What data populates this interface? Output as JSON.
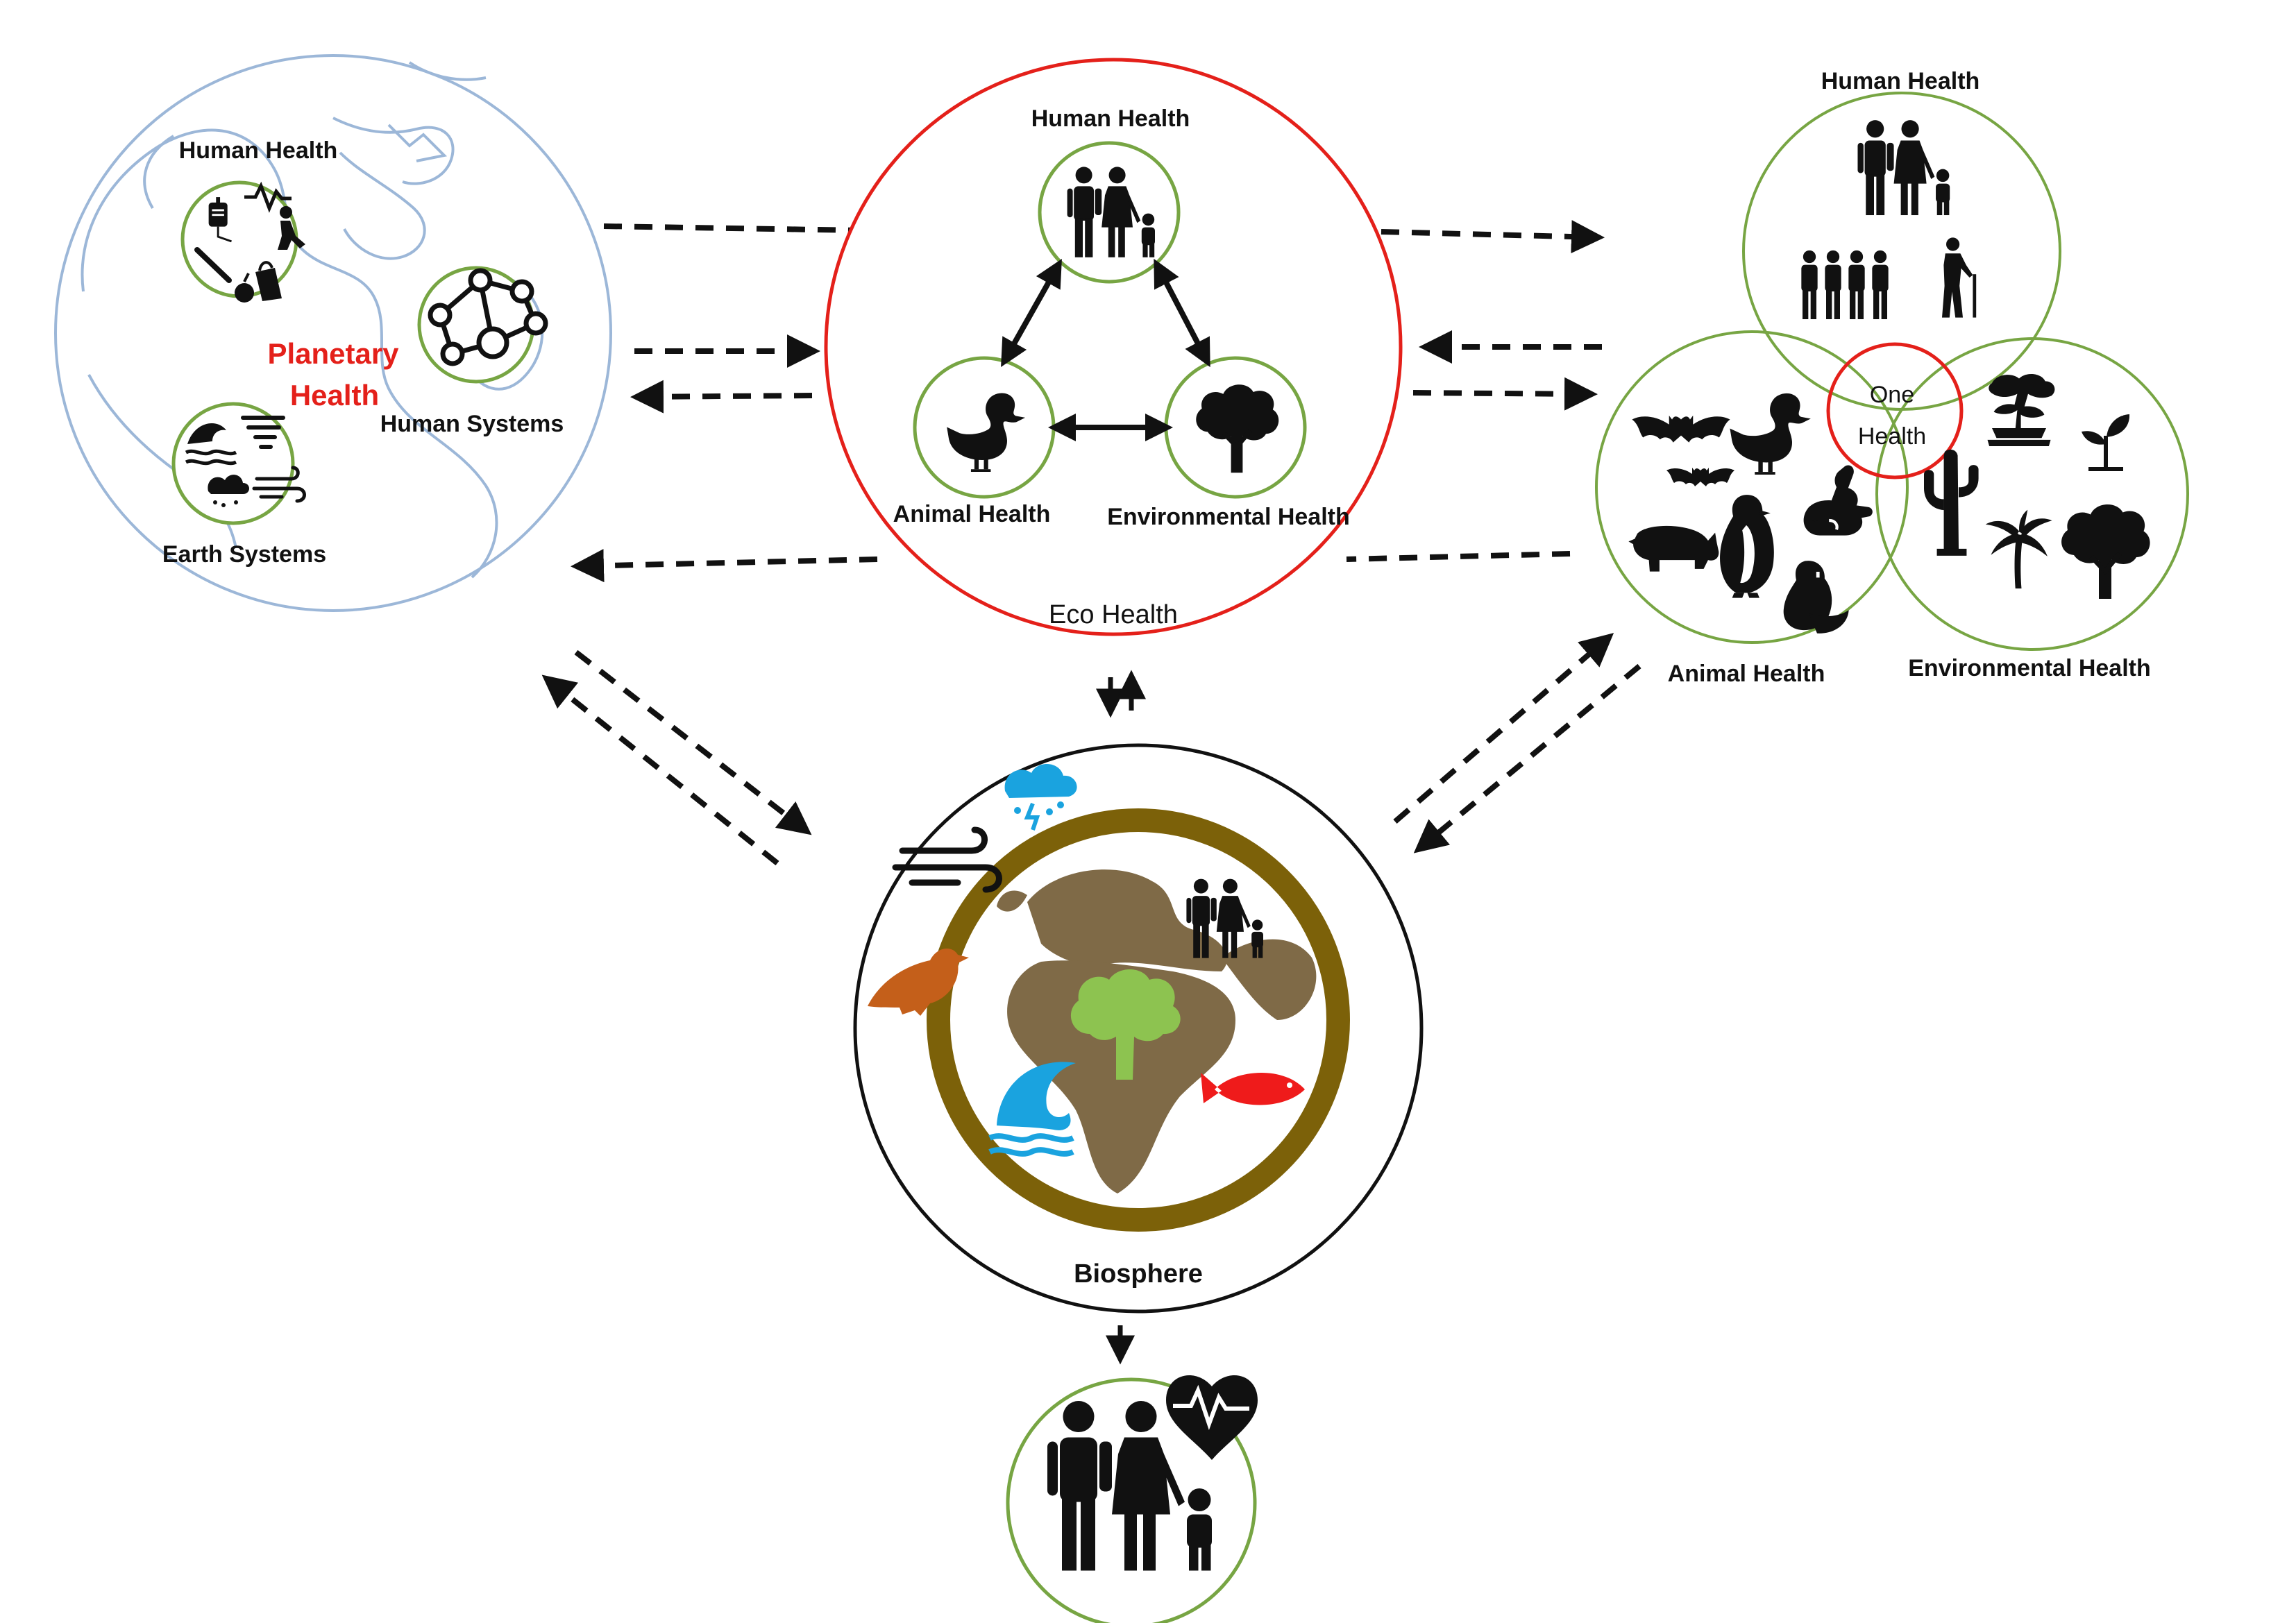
{
  "planetary": {
    "title_line1": "Planetary",
    "title_line2": "Health",
    "human_health": "Human Health",
    "human_systems": "Human Systems",
    "earth_systems": "Earth Systems"
  },
  "eco": {
    "title": "Eco Health",
    "human_health": "Human Health",
    "animal_health": "Animal Health",
    "environmental_health": "Environmental Health"
  },
  "one": {
    "title_line1": "One",
    "title_line2": "Health",
    "human_health": "Human Health",
    "animal_health": "Animal Health",
    "environmental_health": "Environmental Health"
  },
  "biosphere": {
    "title": "Biosphere"
  },
  "colors": {
    "planetary_ring": "#9cb7d8",
    "eco_ring": "#e4201a",
    "group_ring": "#77a543",
    "biosphere_ring": "#111111",
    "earth": "#7c6109",
    "earth_land": "#7f6a47",
    "cloud": "#1aa3df",
    "wave": "#1aa3df",
    "bird": "#c45f1a",
    "fish": "#ef1b1b",
    "tree": "#8dc350",
    "accent_text": "#e4201a"
  },
  "icons": [
    "globe-outline-icon",
    "iv-bag-icon",
    "heartbeat-icon",
    "network-icon",
    "storm-wave-icon",
    "tornado-icon",
    "rain-cloud-icon",
    "wind-icon",
    "family-icon",
    "duck-icon",
    "tree-icon",
    "bat-icon",
    "rabbit-icon",
    "rhino-icon",
    "penguin-icon",
    "beaver-icon",
    "bonsai-icon",
    "sprout-icon",
    "cactus-icon",
    "palm-icon",
    "crowd-icon",
    "elderly-icon",
    "bird-icon",
    "fish-icon",
    "heart-pulse-icon"
  ]
}
